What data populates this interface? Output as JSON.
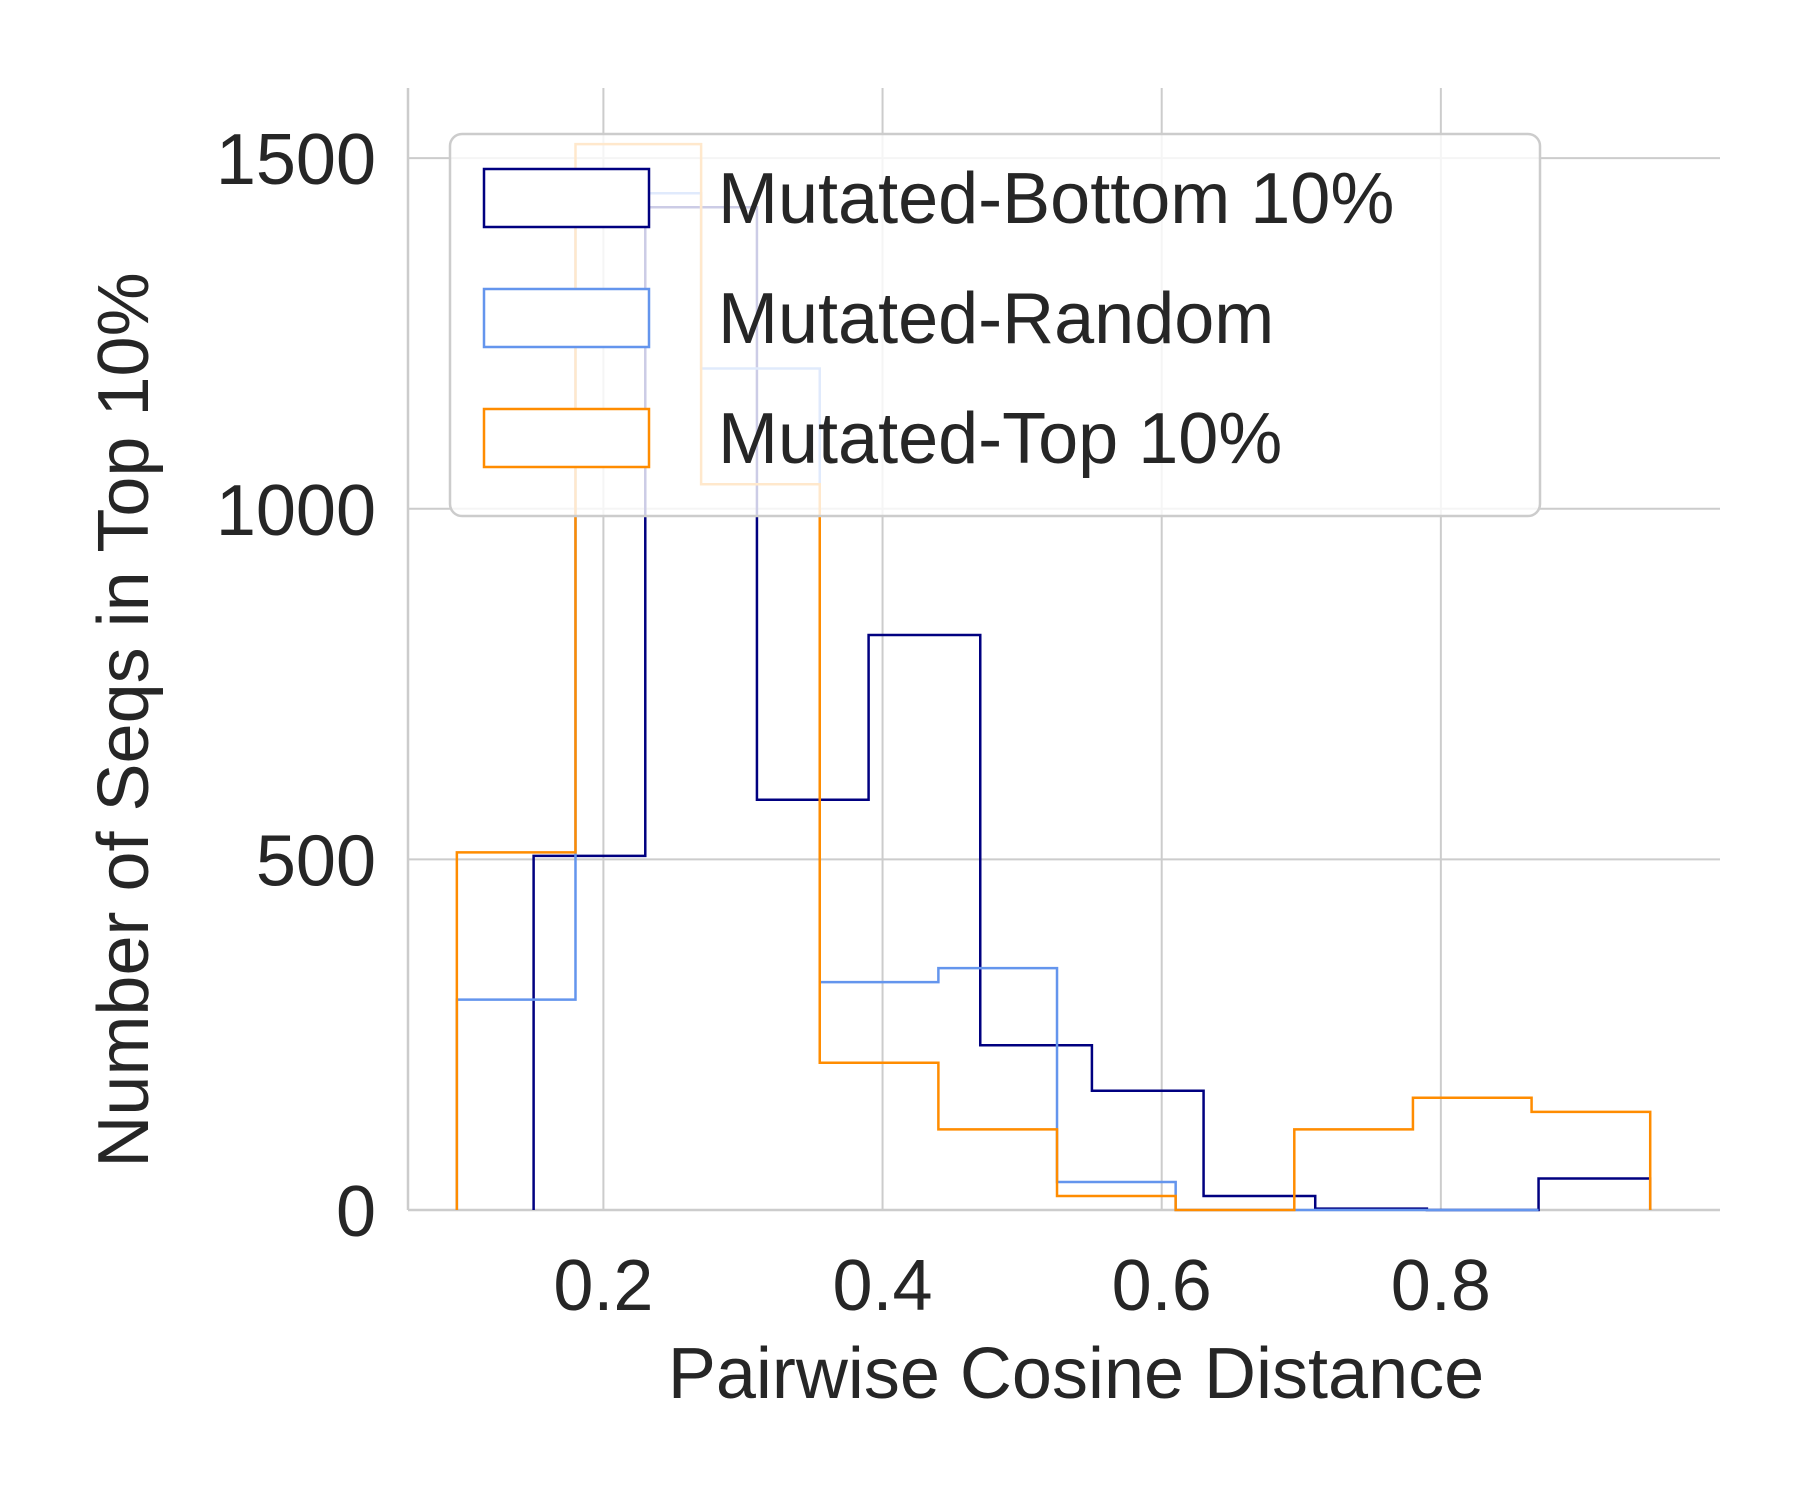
{
  "chart_data": {
    "type": "histogram",
    "xlabel": "Pairwise Cosine Distance",
    "ylabel": "Number of Seqs in Top 10%",
    "xlim": [
      0.06,
      1.0
    ],
    "ylim": [
      0,
      1600
    ],
    "x_ticks": [
      0.2,
      0.4,
      0.6,
      0.8
    ],
    "x_tick_labels": [
      "0.2",
      "0.4",
      "0.6",
      "0.8"
    ],
    "y_ticks": [
      0,
      500,
      1000,
      1500
    ],
    "y_tick_labels": [
      "0",
      "500",
      "1000",
      "1500"
    ],
    "grid": true,
    "legend_position": "upper-right",
    "series": [
      {
        "name": "Mutated-Bottom 10%",
        "color": "#000080",
        "edges": [
          0.15,
          0.23,
          0.31,
          0.39,
          0.47,
          0.55,
          0.63,
          0.71,
          0.79,
          0.87,
          0.95
        ],
        "counts": [
          505,
          1430,
          585,
          820,
          235,
          170,
          20,
          2,
          0,
          45
        ]
      },
      {
        "name": "Mutated-Random",
        "color": "#6495ED",
        "edges": [
          0.095,
          0.18,
          0.27,
          0.355,
          0.44,
          0.525,
          0.61,
          0.695,
          0.78,
          0.87
        ],
        "counts": [
          300,
          1450,
          1200,
          325,
          345,
          40,
          0,
          0,
          0
        ]
      },
      {
        "name": "Mutated-Top 10%",
        "color": "#FF8C00",
        "edges": [
          0.095,
          0.18,
          0.27,
          0.355,
          0.44,
          0.525,
          0.61,
          0.695,
          0.78,
          0.865,
          0.95
        ],
        "counts": [
          510,
          1520,
          1035,
          210,
          115,
          20,
          0,
          115,
          160,
          140
        ]
      }
    ]
  }
}
